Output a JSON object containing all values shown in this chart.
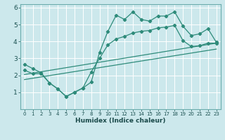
{
  "xlabel": "Humidex (Indice chaleur)",
  "background_color": "#cce8ec",
  "grid_color": "#ffffff",
  "line_color": "#2e8b7a",
  "xlim": [
    -0.5,
    23.5
  ],
  "ylim": [
    0,
    6.2
  ],
  "x_ticks": [
    0,
    1,
    2,
    3,
    4,
    5,
    6,
    7,
    8,
    9,
    10,
    11,
    12,
    13,
    14,
    15,
    16,
    17,
    18,
    19,
    20,
    21,
    22,
    23
  ],
  "y_ticks": [
    1,
    2,
    3,
    4,
    5,
    6
  ],
  "line1_x": [
    0,
    1,
    2,
    3,
    4,
    5,
    6,
    7,
    8,
    9,
    10,
    11,
    12,
    13,
    14,
    15,
    16,
    17,
    18,
    19,
    20,
    21,
    22,
    23
  ],
  "line1_y": [
    2.65,
    2.4,
    2.15,
    1.55,
    1.2,
    0.75,
    1.0,
    1.25,
    1.6,
    3.35,
    4.6,
    5.55,
    5.3,
    5.75,
    5.3,
    5.2,
    5.5,
    5.5,
    5.75,
    4.9,
    4.35,
    4.45,
    4.75,
    3.95
  ],
  "line2_x": [
    0,
    1,
    2,
    3,
    4,
    5,
    6,
    7,
    8,
    9,
    10,
    11,
    12,
    13,
    14,
    15,
    16,
    17,
    18,
    19,
    20,
    21,
    22,
    23
  ],
  "line2_y": [
    2.3,
    2.1,
    2.1,
    1.55,
    1.2,
    0.75,
    1.0,
    1.25,
    2.2,
    3.0,
    3.8,
    4.15,
    4.3,
    4.5,
    4.6,
    4.65,
    4.8,
    4.85,
    4.95,
    4.05,
    3.7,
    3.75,
    3.9,
    3.9
  ],
  "line3_x": [
    0,
    23
  ],
  "line3_y": [
    2.05,
    3.9
  ],
  "line4_x": [
    0,
    23
  ],
  "line4_y": [
    1.75,
    3.55
  ]
}
